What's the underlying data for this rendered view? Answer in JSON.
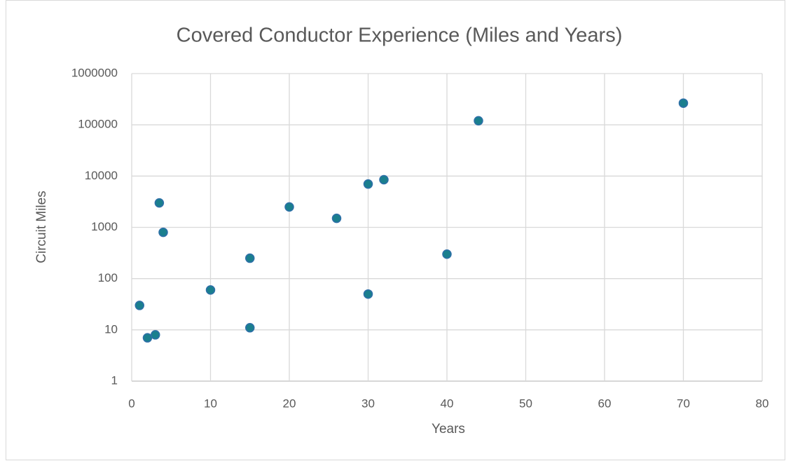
{
  "chart_data": {
    "type": "scatter",
    "title": "Covered Conductor Experience (Miles and Years)",
    "x_label": "Years",
    "y_label": "Circuit Miles",
    "x": [
      1,
      2,
      3,
      3.5,
      4,
      10,
      15,
      15,
      20,
      26,
      30,
      30,
      32,
      40,
      44,
      70
    ],
    "values": [
      30,
      7,
      8,
      3000,
      800,
      60,
      250,
      11,
      2500,
      1500,
      7000,
      50,
      8500,
      300,
      120000,
      265000
    ],
    "color": "#1a7f8e",
    "edge_color": "#2e6fa8",
    "xlim": [
      0,
      80
    ],
    "xticks": [
      0,
      10,
      20,
      30,
      40,
      50,
      60,
      70,
      80
    ],
    "ylim": [
      1,
      1000000
    ],
    "yticks": [
      1,
      10,
      100,
      1000,
      10000,
      100000,
      1000000
    ],
    "log_y": true,
    "grid": true
  }
}
